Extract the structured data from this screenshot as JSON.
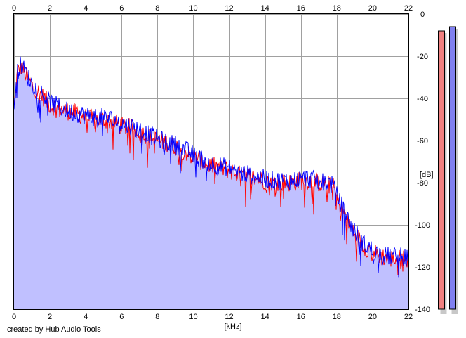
{
  "footer": {
    "credit": "created by Hub Audio Tools"
  },
  "chart_data": {
    "type": "area",
    "xlabel": "[kHz]",
    "ylabel": "[dB]",
    "xlim": [
      0,
      22
    ],
    "ylim": [
      -140,
      0
    ],
    "x_ticks": [
      0,
      2,
      4,
      6,
      8,
      10,
      12,
      14,
      16,
      18,
      20,
      22
    ],
    "y_ticks": [
      0,
      -20,
      -40,
      -60,
      -80,
      -100,
      -120,
      -140
    ],
    "grid": true,
    "colors": {
      "fill": "#c0c0ff",
      "series_red": "#ff0000",
      "series_blue": "#0000ff",
      "meter_red": "#f08080",
      "meter_blue": "#8080f0",
      "grid": "#a0a0a0"
    },
    "series": [
      {
        "color": "#ff0000",
        "x": [
          0,
          0.2,
          0.4,
          0.6,
          0.8,
          1,
          1.5,
          2,
          2.5,
          3,
          3.5,
          4,
          4.5,
          5,
          5.5,
          6,
          6.5,
          7,
          7.5,
          8,
          8.5,
          9,
          9.5,
          10,
          10.5,
          11,
          11.5,
          12,
          12.5,
          13,
          13.5,
          14,
          14.5,
          15,
          15.5,
          16,
          16.5,
          17,
          17.5,
          17.8,
          18,
          18.3,
          18.6,
          19,
          19.5,
          20,
          20.5,
          21,
          21.5,
          22
        ],
        "values": [
          -45,
          -27,
          -25,
          -28,
          -31,
          -34,
          -38,
          -43,
          -45,
          -46,
          -47,
          -49,
          -50,
          -50,
          -51,
          -53,
          -54,
          -56,
          -58,
          -60,
          -61,
          -63,
          -65,
          -68,
          -70,
          -72,
          -73,
          -74,
          -76,
          -77,
          -78,
          -79,
          -80,
          -80,
          -80,
          -79,
          -79,
          -80,
          -81,
          -82,
          -87,
          -92,
          -98,
          -104,
          -110,
          -113,
          -115,
          -116,
          -116,
          -116
        ]
      },
      {
        "color": "#0000ff",
        "x": [
          0,
          0.2,
          0.4,
          0.6,
          0.8,
          1,
          1.5,
          2,
          2.5,
          3,
          3.5,
          4,
          4.5,
          5,
          5.5,
          6,
          6.5,
          7,
          7.5,
          8,
          8.5,
          9,
          9.5,
          10,
          10.5,
          11,
          11.5,
          12,
          12.5,
          13,
          13.5,
          14,
          14.5,
          15,
          15.5,
          16,
          16.5,
          17,
          17.5,
          17.8,
          18,
          18.3,
          18.6,
          19,
          19.5,
          20,
          20.5,
          21,
          21.5,
          22
        ],
        "values": [
          -43,
          -26,
          -24,
          -27,
          -30,
          -33,
          -37,
          -42,
          -44,
          -46,
          -47,
          -48,
          -49,
          -49,
          -50,
          -52,
          -53,
          -55,
          -57,
          -59,
          -61,
          -62,
          -64,
          -67,
          -69,
          -71,
          -72,
          -73,
          -75,
          -76,
          -77,
          -78,
          -79,
          -79,
          -79,
          -78,
          -78,
          -79,
          -80,
          -81,
          -86,
          -91,
          -97,
          -103,
          -109,
          -112,
          -114,
          -115,
          -115,
          -115
        ]
      }
    ],
    "level_meters": {
      "red_db": -8,
      "blue_db": -6
    }
  }
}
